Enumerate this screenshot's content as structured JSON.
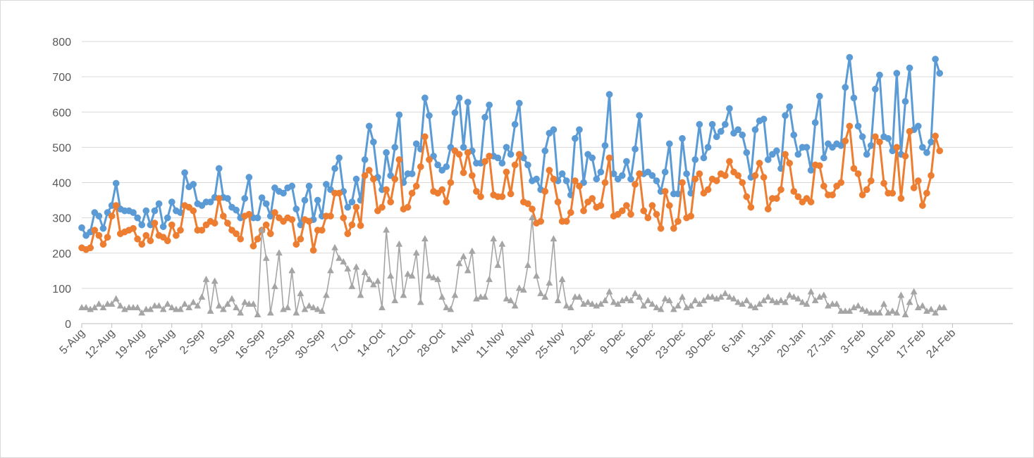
{
  "chart_data": {
    "type": "line",
    "title": "",
    "xlabel": "",
    "ylabel": "",
    "ylim": [
      0,
      800
    ],
    "y_ticks": [
      "0",
      "100",
      "200",
      "300",
      "400",
      "500",
      "600",
      "700",
      "800"
    ],
    "x_tick_labels": [
      "5-Aug",
      "12-Aug",
      "19-Aug",
      "26-Aug",
      "2-Sep",
      "9-Sep",
      "16-Sep",
      "23-Sep",
      "30-Sep",
      "7-Oct",
      "14-Oct",
      "21-Oct",
      "28-Oct",
      "4-Nov",
      "11-Nov",
      "18-Nov",
      "25-Nov",
      "2-Dec",
      "9-Dec",
      "16-Dec",
      "23-Dec",
      "30-Dec",
      "6-Jan",
      "13-Jan",
      "20-Jan",
      "27-Jan",
      "3-Feb",
      "10-Feb",
      "17-Feb",
      "24-Feb"
    ],
    "x_range": [
      "5-Aug",
      "24-Feb"
    ],
    "grid": "horizontal",
    "legend": "none",
    "series": [
      {
        "color": "#5B9BD5",
        "marker": "circle",
        "values": [
          272,
          250,
          260,
          315,
          305,
          270,
          315,
          335,
          398,
          325,
          320,
          320,
          315,
          300,
          280,
          320,
          280,
          320,
          340,
          275,
          300,
          345,
          320,
          315,
          428,
          388,
          395,
          340,
          335,
          345,
          345,
          358,
          440,
          358,
          355,
          330,
          322,
          300,
          355,
          415,
          300,
          300,
          357,
          340,
          305,
          385,
          375,
          370,
          385,
          390,
          325,
          280,
          350,
          390,
          295,
          350,
          305,
          395,
          380,
          440,
          470,
          375,
          330,
          345,
          410,
          350,
          465,
          560,
          515,
          415,
          380,
          485,
          420,
          500,
          592,
          400,
          425,
          425,
          510,
          495,
          640,
          590,
          475,
          450,
          435,
          445,
          500,
          598,
          640,
          500,
          628,
          490,
          455,
          455,
          585,
          620,
          475,
          470,
          455,
          500,
          480,
          565,
          625,
          470,
          450,
          405,
          410,
          380,
          490,
          540,
          550,
          405,
          425,
          405,
          365,
          525,
          550,
          400,
          480,
          470,
          410,
          430,
          505,
          650,
          425,
          410,
          420,
          460,
          410,
          495,
          590,
          425,
          430,
          420,
          405,
          375,
          430,
          510,
          368,
          368,
          525,
          425,
          370,
          465,
          565,
          470,
          500,
          565,
          530,
          545,
          565,
          610,
          540,
          550,
          535,
          485,
          415,
          550,
          575,
          580,
          465,
          480,
          490,
          440,
          590,
          615,
          535,
          480,
          500,
          500,
          435,
          570,
          645,
          470,
          510,
          500,
          510,
          505,
          670,
          755,
          640,
          560,
          530,
          480,
          505,
          665,
          705,
          530,
          525,
          490,
          710,
          480,
          630,
          725,
          550,
          560,
          500,
          485,
          515,
          750,
          710
        ]
      },
      {
        "color": "#ED7D31",
        "marker": "circle",
        "values": [
          215,
          210,
          215,
          265,
          250,
          225,
          245,
          305,
          335,
          255,
          260,
          265,
          270,
          240,
          225,
          250,
          235,
          285,
          250,
          245,
          235,
          280,
          250,
          265,
          335,
          330,
          320,
          265,
          265,
          280,
          290,
          285,
          355,
          305,
          285,
          265,
          255,
          240,
          305,
          310,
          220,
          240,
          265,
          280,
          255,
          315,
          300,
          290,
          300,
          295,
          225,
          240,
          295,
          290,
          208,
          265,
          265,
          305,
          305,
          370,
          370,
          300,
          255,
          280,
          330,
          278,
          420,
          435,
          410,
          320,
          330,
          380,
          345,
          410,
          465,
          325,
          330,
          370,
          390,
          445,
          530,
          465,
          375,
          370,
          380,
          345,
          400,
          490,
          480,
          428,
          485,
          420,
          375,
          360,
          460,
          475,
          365,
          360,
          360,
          430,
          368,
          450,
          480,
          345,
          340,
          325,
          285,
          290,
          375,
          435,
          410,
          345,
          290,
          290,
          315,
          405,
          390,
          320,
          345,
          355,
          330,
          335,
          400,
          470,
          305,
          310,
          320,
          335,
          310,
          395,
          425,
          320,
          300,
          335,
          310,
          270,
          375,
          335,
          270,
          290,
          400,
          300,
          305,
          410,
          425,
          370,
          380,
          410,
          405,
          425,
          420,
          460,
          430,
          420,
          400,
          360,
          330,
          420,
          455,
          415,
          325,
          355,
          355,
          380,
          480,
          455,
          375,
          360,
          345,
          355,
          345,
          450,
          448,
          390,
          365,
          365,
          390,
          400,
          518,
          560,
          440,
          425,
          365,
          380,
          405,
          530,
          515,
          398,
          370,
          370,
          500,
          355,
          475,
          545,
          385,
          405,
          335,
          370,
          420,
          532,
          490
        ]
      },
      {
        "color": "#A5A5A5",
        "marker": "triangle",
        "values": [
          45,
          45,
          40,
          45,
          55,
          45,
          55,
          55,
          70,
          50,
          40,
          45,
          45,
          45,
          30,
          40,
          40,
          50,
          50,
          40,
          55,
          45,
          40,
          40,
          55,
          45,
          60,
          50,
          75,
          125,
          35,
          120,
          50,
          40,
          55,
          70,
          45,
          30,
          60,
          55,
          55,
          25,
          265,
          185,
          30,
          105,
          200,
          40,
          45,
          150,
          30,
          85,
          40,
          50,
          45,
          40,
          35,
          80,
          150,
          215,
          185,
          175,
          155,
          105,
          160,
          80,
          145,
          125,
          110,
          120,
          45,
          265,
          135,
          65,
          225,
          80,
          140,
          135,
          200,
          60,
          240,
          135,
          130,
          125,
          75,
          45,
          40,
          80,
          170,
          190,
          150,
          205,
          70,
          75,
          75,
          125,
          240,
          165,
          225,
          70,
          65,
          50,
          100,
          95,
          165,
          300,
          135,
          85,
          75,
          115,
          240,
          65,
          125,
          50,
          45,
          75,
          75,
          55,
          60,
          55,
          50,
          55,
          65,
          90,
          60,
          55,
          65,
          70,
          65,
          85,
          75,
          50,
          65,
          55,
          45,
          40,
          70,
          65,
          40,
          50,
          75,
          45,
          50,
          65,
          55,
          65,
          75,
          75,
          70,
          75,
          85,
          75,
          70,
          60,
          55,
          65,
          50,
          45,
          55,
          65,
          75,
          65,
          60,
          65,
          60,
          80,
          75,
          70,
          60,
          55,
          90,
          65,
          75,
          80,
          50,
          55,
          55,
          35,
          35,
          35,
          45,
          50,
          40,
          35,
          30,
          30,
          30,
          55,
          30,
          35,
          30,
          80,
          25,
          60,
          90,
          45,
          50,
          35,
          40,
          30,
          45,
          45
        ]
      }
    ]
  }
}
